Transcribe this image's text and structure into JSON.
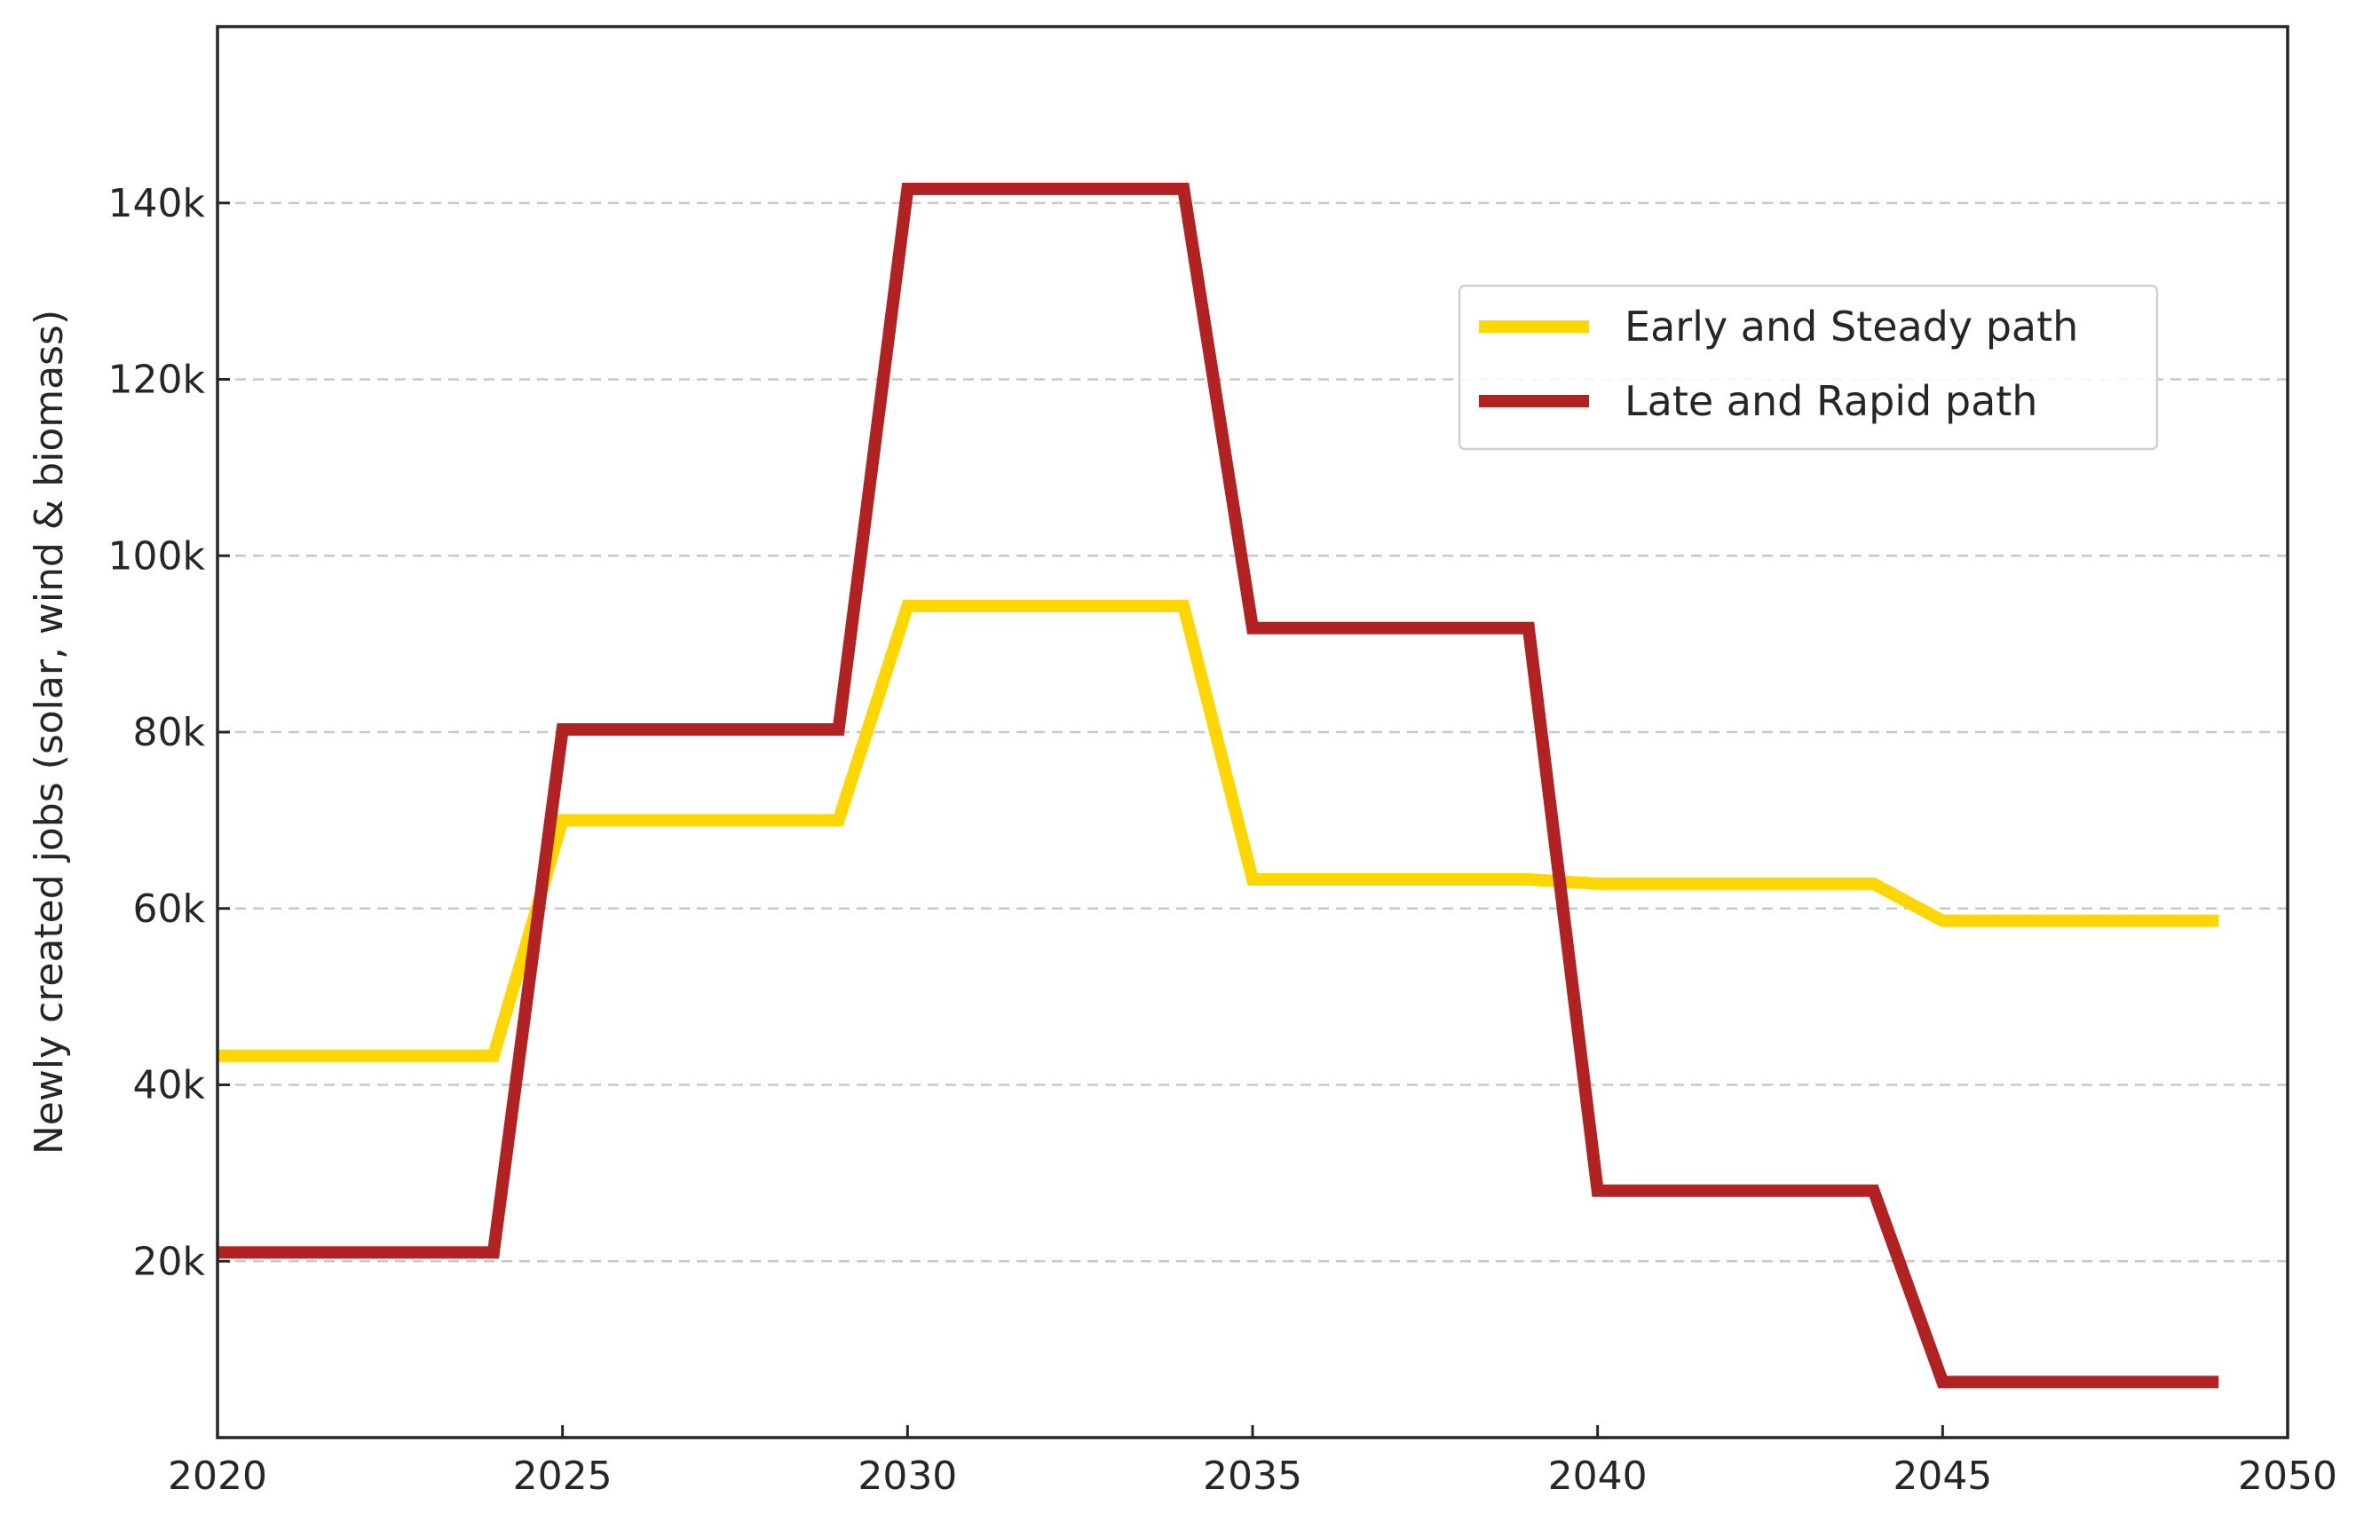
{
  "chart_data": {
    "type": "line",
    "title": "",
    "xlabel": "",
    "ylabel": "Newly created jobs (solar, wind & biomass)",
    "xlim": [
      2020,
      2050
    ],
    "ylim": [
      0,
      160000
    ],
    "x_ticks": [
      2020,
      2025,
      2030,
      2035,
      2040,
      2045,
      2050
    ],
    "x_tick_labels": [
      "2020",
      "2025",
      "2030",
      "2035",
      "2040",
      "2045",
      "2050"
    ],
    "y_ticks": [
      20000,
      40000,
      60000,
      80000,
      100000,
      120000,
      140000
    ],
    "y_tick_labels": [
      "20k",
      "40k",
      "60k",
      "80k",
      "100k",
      "120k",
      "140k"
    ],
    "grid": "horizontal dashed",
    "legend_position": "upper-right",
    "series": [
      {
        "name": "Early and Steady path",
        "color": "#FFD700",
        "x": [
          2020,
          2024,
          2025,
          2029,
          2030,
          2034,
          2035,
          2039,
          2040,
          2044,
          2045,
          2049
        ],
        "values": [
          43300,
          43300,
          70000,
          70000,
          94300,
          94300,
          63300,
          63300,
          62800,
          62800,
          58600,
          58600
        ]
      },
      {
        "name": "Late and Rapid path",
        "color": "#B22222",
        "x": [
          2020,
          2024,
          2025,
          2029,
          2030,
          2034,
          2035,
          2039,
          2040,
          2044,
          2045,
          2049
        ],
        "values": [
          21000,
          21000,
          80300,
          80300,
          141600,
          141600,
          91800,
          91800,
          28000,
          28000,
          6300,
          6300
        ]
      }
    ]
  }
}
